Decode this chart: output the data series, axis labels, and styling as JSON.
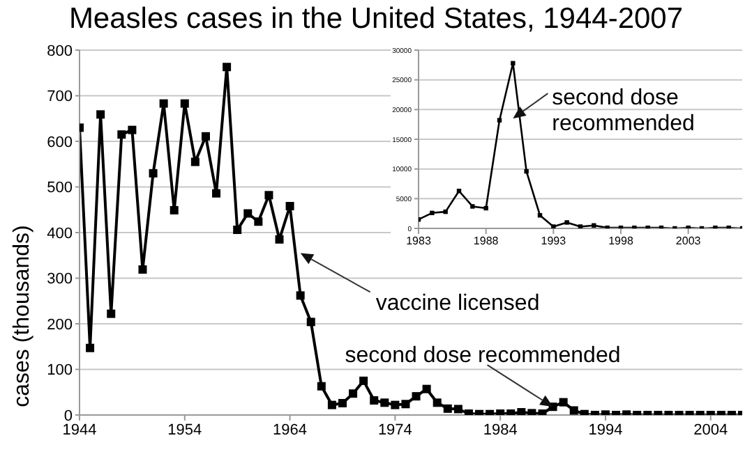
{
  "chart_data": [
    {
      "type": "line",
      "title": "Measles cases in the United States, 1944-2007",
      "ylabel": "cases (thousands)",
      "x": [
        1944,
        1945,
        1946,
        1947,
        1948,
        1949,
        1950,
        1951,
        1952,
        1953,
        1954,
        1955,
        1956,
        1957,
        1958,
        1959,
        1960,
        1961,
        1962,
        1963,
        1964,
        1965,
        1966,
        1967,
        1968,
        1969,
        1970,
        1971,
        1972,
        1973,
        1974,
        1975,
        1976,
        1977,
        1978,
        1979,
        1980,
        1981,
        1982,
        1983,
        1984,
        1985,
        1986,
        1987,
        1988,
        1989,
        1990,
        1991,
        1992,
        1993,
        1994,
        1995,
        1996,
        1997,
        1998,
        1999,
        2000,
        2001,
        2002,
        2003,
        2004,
        2005,
        2006,
        2007
      ],
      "series": [
        {
          "color": "#000000",
          "values": [
            630,
            147,
            659,
            222,
            615,
            625,
            319,
            530,
            683,
            449,
            683,
            555,
            611,
            486,
            763,
            406,
            442,
            424,
            482,
            385,
            458,
            262,
            204,
            63,
            22,
            26,
            47,
            75,
            32,
            27,
            22,
            24,
            41,
            57,
            27,
            14,
            13,
            3,
            2,
            2,
            3,
            3,
            6,
            4,
            3,
            18,
            28,
            10,
            2,
            0,
            1,
            0,
            1,
            0,
            0,
            0,
            0,
            0,
            0,
            0,
            0,
            0,
            0,
            0
          ]
        }
      ],
      "xlim": [
        1944,
        2007
      ],
      "xticks": [
        1944,
        1954,
        1964,
        1974,
        1984,
        1994,
        2004
      ],
      "ylim": [
        0,
        800
      ],
      "yticks": [
        0,
        100,
        200,
        300,
        400,
        500,
        600,
        700,
        800
      ],
      "grid": "y",
      "marker": "square",
      "annotations": [
        {
          "text": "vaccine licensed",
          "x": 1965,
          "y": 355
        },
        {
          "text": "second dose recommended",
          "x": 1989,
          "y": 18
        }
      ]
    },
    {
      "type": "line",
      "x": [
        1983,
        1984,
        1985,
        1986,
        1987,
        1988,
        1989,
        1990,
        1991,
        1992,
        1993,
        1994,
        1995,
        1996,
        1997,
        1998,
        1999,
        2000,
        2001,
        2002,
        2003,
        2004,
        2005,
        2006,
        2007
      ],
      "series": [
        {
          "color": "#000000",
          "values": [
            1500,
            2600,
            2800,
            6300,
            3700,
            3400,
            18200,
            27800,
            9600,
            2200,
            300,
            1000,
            300,
            500,
            100,
            100,
            100,
            100,
            100,
            0,
            100,
            0,
            100,
            100,
            0
          ]
        }
      ],
      "xlim": [
        1983,
        2007
      ],
      "xticks": [
        1983,
        1988,
        1993,
        1998,
        2003
      ],
      "ylim": [
        0,
        30000
      ],
      "yticks": [
        0,
        5000,
        10000,
        15000,
        20000,
        25000,
        30000
      ],
      "grid": "y",
      "marker": "square",
      "annotations": [
        {
          "text": "second dose recommended",
          "x": 1990,
          "y": 18500
        }
      ]
    }
  ]
}
